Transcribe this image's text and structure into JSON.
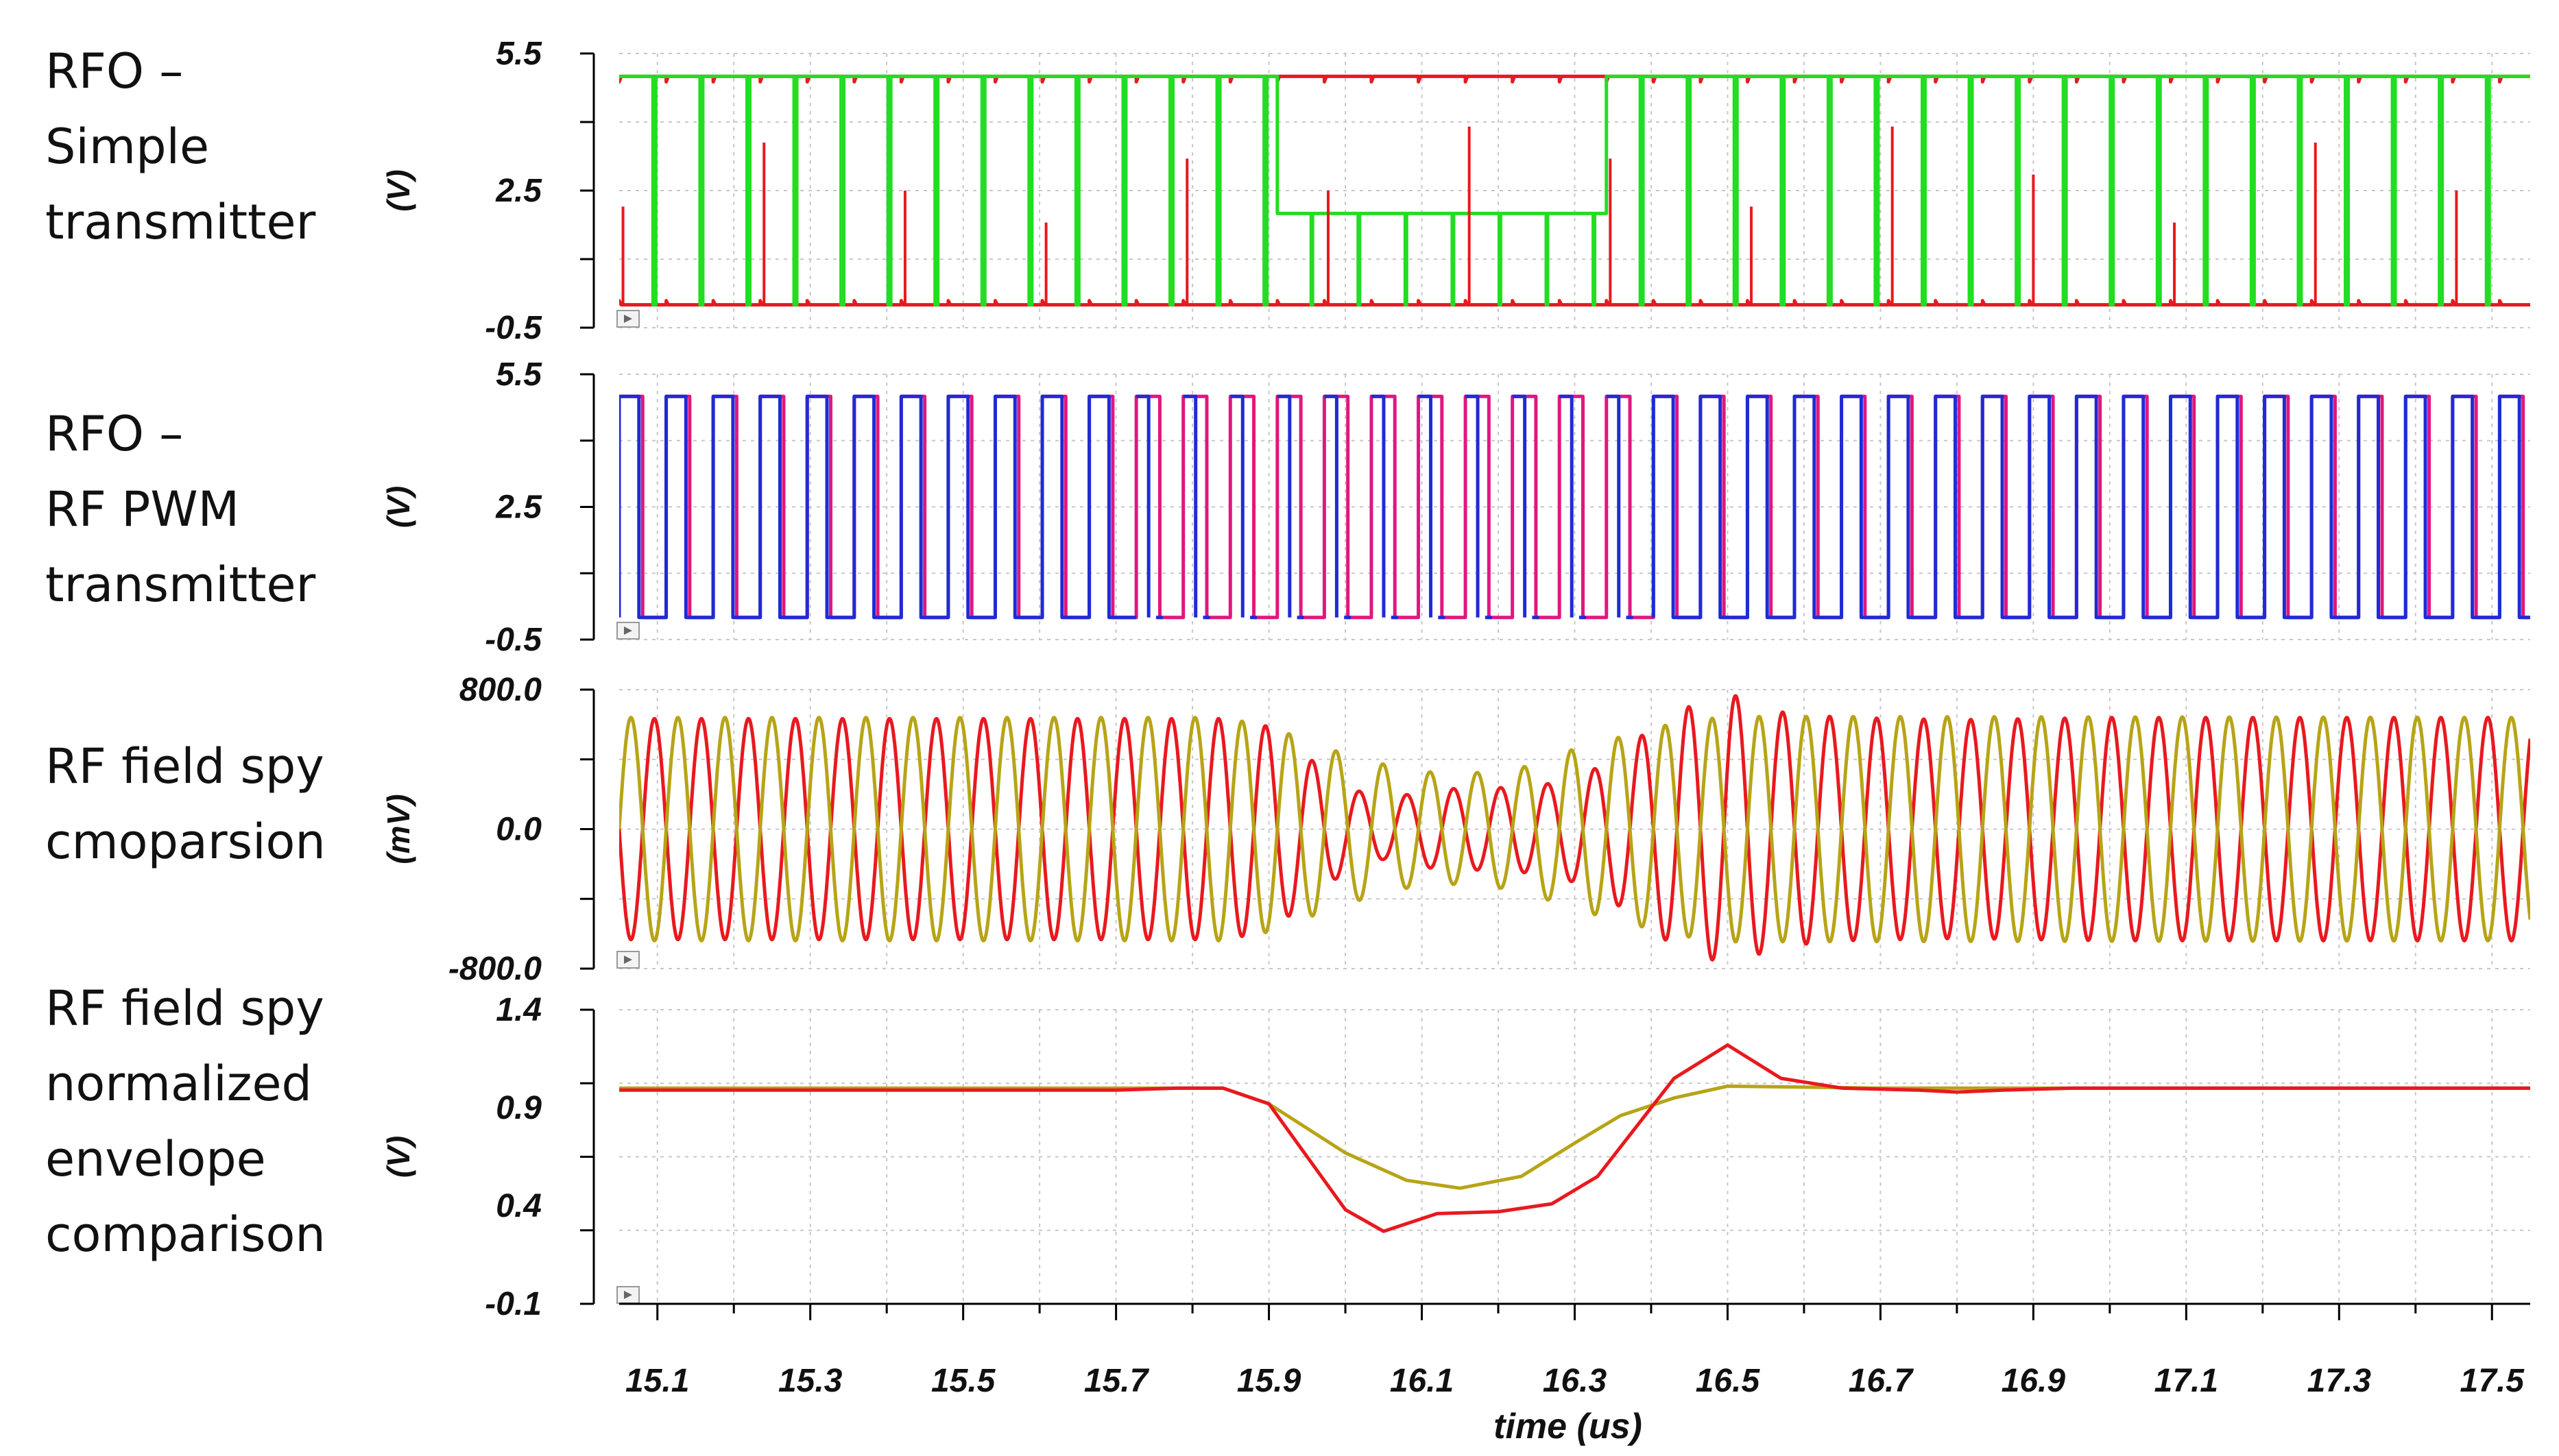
{
  "chart_data": {
    "type": "line",
    "xlabel": "time (us)",
    "xlim": [
      15.05,
      17.55
    ],
    "x_ticks": [
      "15.1",
      "15.3",
      "15.5",
      "15.7",
      "15.9",
      "16.1",
      "16.3",
      "16.5",
      "16.7",
      "16.9",
      "17.1",
      "17.3",
      "17.5"
    ],
    "panels": [
      {
        "title": [
          "RFO –",
          "Simple",
          "transmitter"
        ],
        "unit": "(V)",
        "ylim": [
          -0.5,
          5.5
        ],
        "y_ticks": [
          "5.5",
          "2.5",
          "-0.5"
        ],
        "kind": "digital",
        "colors": [
          "#e8191f",
          "#22dd22"
        ],
        "series": [
          {
            "name": "",
            "color": "#e8191f",
            "high": 5.0,
            "low": 0.0,
            "period_us": 0.0615
          },
          {
            "name": "",
            "color": "#22dd22",
            "high": 5.0,
            "low": 0.0,
            "mid_level": 2.0,
            "mid_window_us": [
              15.86,
              16.31
            ],
            "period_us": 0.0615
          }
        ]
      },
      {
        "title": [
          "RFO –",
          "RF PWM",
          "transmitter"
        ],
        "unit": "(V)",
        "ylim": [
          -0.5,
          5.5
        ],
        "y_ticks": [
          "5.5",
          "2.5",
          "-0.5"
        ],
        "kind": "pwm",
        "colors": [
          "#e0177f",
          "#1f2bd6"
        ],
        "series": [
          {
            "name": "",
            "color": "#e0177f",
            "high": 5.0,
            "low": 0.0,
            "period_us": 0.0615
          },
          {
            "name": "",
            "color": "#1f2bd6",
            "high": 5.0,
            "low": 0.0,
            "period_us": 0.0615,
            "dropout_window_us": [
              15.7,
              16.35
            ]
          }
        ]
      },
      {
        "title": [
          "RF field spy",
          "cmoparsion"
        ],
        "unit": "(mV)",
        "ylim": [
          -800,
          800
        ],
        "y_ticks": [
          "800.0",
          "0.0",
          "-800.0"
        ],
        "kind": "sine",
        "series": [
          {
            "name": "",
            "color": "#e8191f",
            "period_us": 0.0615,
            "envelope": [
              [
                15.05,
                0.99
              ],
              [
                15.7,
                0.99
              ],
              [
                15.84,
                0.99
              ],
              [
                15.9,
                0.92
              ],
              [
                16.0,
                0.38
              ],
              [
                16.05,
                0.27
              ],
              [
                16.12,
                0.36
              ],
              [
                16.2,
                0.37
              ],
              [
                16.27,
                0.41
              ],
              [
                16.33,
                0.55
              ],
              [
                16.43,
                1.05
              ],
              [
                16.5,
                1.22
              ],
              [
                16.57,
                1.05
              ],
              [
                16.65,
                1.0
              ],
              [
                16.8,
                0.98
              ],
              [
                17.0,
                1.0
              ],
              [
                17.55,
                1.0
              ]
            ]
          },
          {
            "name": "",
            "color": "#b7a417",
            "period_us": 0.0615,
            "envelope": [
              [
                15.05,
                1.0
              ],
              [
                15.84,
                1.0
              ],
              [
                15.9,
                0.92
              ],
              [
                16.0,
                0.67
              ],
              [
                16.08,
                0.53
              ],
              [
                16.15,
                0.49
              ],
              [
                16.23,
                0.55
              ],
              [
                16.3,
                0.72
              ],
              [
                16.43,
                0.95
              ],
              [
                16.5,
                1.01
              ],
              [
                17.55,
                1.0
              ]
            ]
          }
        ]
      },
      {
        "title": [
          "RF field spy",
          "normalized",
          "envelope",
          "comparison"
        ],
        "unit": "(V)",
        "ylim": [
          -0.1,
          1.4
        ],
        "y_ticks": [
          "1.4",
          "0.9",
          "0.4",
          "-0.1"
        ],
        "kind": "envelope",
        "series": [
          {
            "name": "",
            "color": "#e8191f",
            "points": [
              [
                15.05,
                0.99
              ],
              [
                15.7,
                0.99
              ],
              [
                15.78,
                1.0
              ],
              [
                15.84,
                1.0
              ],
              [
                15.9,
                0.92
              ],
              [
                16.0,
                0.38
              ],
              [
                16.05,
                0.27
              ],
              [
                16.12,
                0.36
              ],
              [
                16.2,
                0.37
              ],
              [
                16.27,
                0.41
              ],
              [
                16.33,
                0.55
              ],
              [
                16.43,
                1.05
              ],
              [
                16.5,
                1.22
              ],
              [
                16.57,
                1.05
              ],
              [
                16.65,
                1.0
              ],
              [
                16.75,
                0.99
              ],
              [
                16.8,
                0.98
              ],
              [
                16.86,
                0.99
              ],
              [
                16.95,
                1.0
              ],
              [
                17.1,
                1.0
              ],
              [
                17.2,
                1.0
              ],
              [
                17.55,
                1.0
              ]
            ]
          },
          {
            "name": "",
            "color": "#b7a417",
            "points": [
              [
                15.05,
                1.0
              ],
              [
                15.84,
                1.0
              ],
              [
                15.9,
                0.92
              ],
              [
                16.0,
                0.67
              ],
              [
                16.08,
                0.53
              ],
              [
                16.15,
                0.49
              ],
              [
                16.23,
                0.55
              ],
              [
                16.3,
                0.72
              ],
              [
                16.36,
                0.86
              ],
              [
                16.43,
                0.95
              ],
              [
                16.5,
                1.01
              ],
              [
                16.7,
                1.0
              ],
              [
                17.55,
                1.0
              ]
            ]
          }
        ]
      }
    ]
  }
}
